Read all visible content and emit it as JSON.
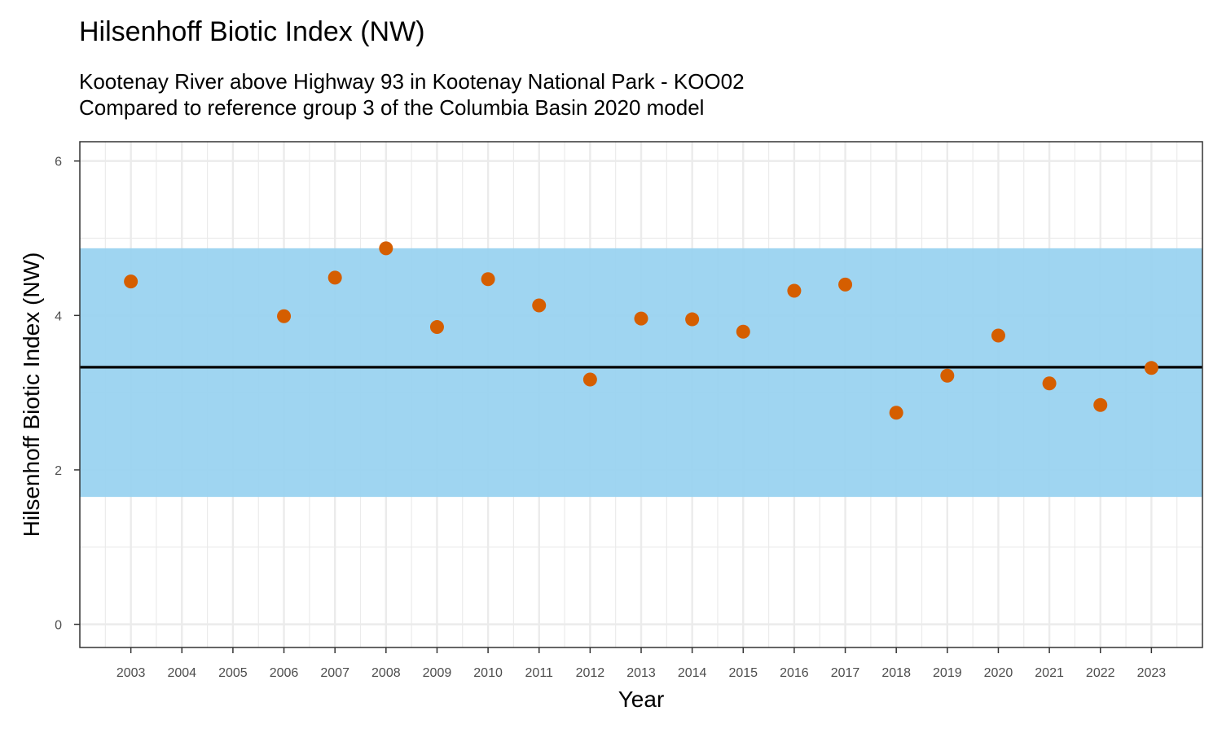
{
  "chart_data": {
    "type": "scatter",
    "title": "Hilsenhoff Biotic Index (NW)",
    "subtitle": [
      "Kootenay River above Highway 93 in Kootenay National Park - KOO02",
      "Compared to reference group 3 of the Columbia Basin 2020 model"
    ],
    "xlabel": "Year",
    "ylabel": "Hilsenhoff Biotic Index (NW)",
    "xlim": [
      2002,
      2024
    ],
    "ylim": [
      -0.3,
      6.25
    ],
    "x_ticks": [
      2003,
      2004,
      2005,
      2006,
      2007,
      2008,
      2009,
      2010,
      2011,
      2012,
      2013,
      2014,
      2015,
      2016,
      2017,
      2018,
      2019,
      2020,
      2021,
      2022,
      2023
    ],
    "y_ticks": [
      0,
      2,
      4,
      6
    ],
    "grid": true,
    "reference_band": {
      "ymin": 1.65,
      "ymax": 4.87,
      "color": "#9ad3f0"
    },
    "reference_line": {
      "y": 3.33,
      "color": "#000000"
    },
    "point_color": "#d55e00",
    "points": [
      {
        "x": 2003,
        "y": 4.44
      },
      {
        "x": 2006,
        "y": 3.99
      },
      {
        "x": 2007,
        "y": 4.49
      },
      {
        "x": 2008,
        "y": 4.87
      },
      {
        "x": 2009,
        "y": 3.85
      },
      {
        "x": 2010,
        "y": 4.47
      },
      {
        "x": 2011,
        "y": 4.13
      },
      {
        "x": 2012,
        "y": 3.17
      },
      {
        "x": 2013,
        "y": 3.96
      },
      {
        "x": 2014,
        "y": 3.95
      },
      {
        "x": 2015,
        "y": 3.79
      },
      {
        "x": 2016,
        "y": 4.32
      },
      {
        "x": 2017,
        "y": 4.4
      },
      {
        "x": 2018,
        "y": 2.74
      },
      {
        "x": 2019,
        "y": 3.22
      },
      {
        "x": 2020,
        "y": 3.74
      },
      {
        "x": 2021,
        "y": 3.12
      },
      {
        "x": 2022,
        "y": 2.84
      },
      {
        "x": 2023,
        "y": 3.32
      }
    ]
  }
}
